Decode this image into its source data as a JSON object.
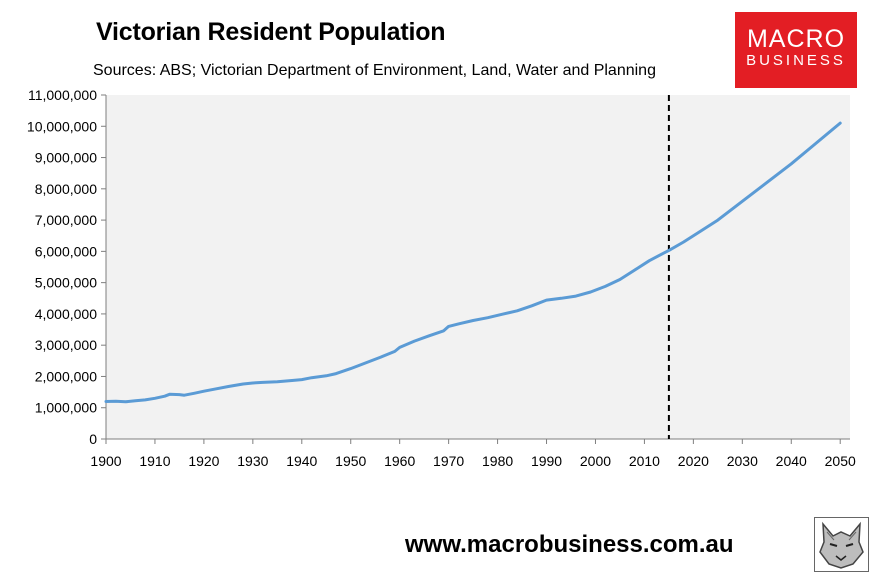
{
  "chart_data": {
    "type": "line",
    "title": "Victorian Resident Population",
    "subtitle": "Sources: ABS; Victorian Department of Environment, Land, Water and Planning",
    "xlim": [
      1900,
      2052
    ],
    "ylim": [
      0,
      11000000
    ],
    "x_ticks": [
      1900,
      1910,
      1920,
      1930,
      1940,
      1950,
      1960,
      1970,
      1980,
      1990,
      2000,
      2010,
      2020,
      2030,
      2040,
      2050
    ],
    "y_ticks": [
      0,
      1000000,
      2000000,
      3000000,
      4000000,
      5000000,
      6000000,
      7000000,
      8000000,
      9000000,
      10000000,
      11000000
    ],
    "y_tick_labels": [
      "0",
      "1,000,000",
      "2,000,000",
      "3,000,000",
      "4,000,000",
      "5,000,000",
      "6,000,000",
      "7,000,000",
      "8,000,000",
      "9,000,000",
      "10,000,000",
      "11,000,000"
    ],
    "grid": false,
    "marker_year": 2015,
    "series": [
      {
        "color": "#5b9bd5",
        "x": [
          1900,
          1902,
          1904,
          1906,
          1908,
          1910,
          1912,
          1913,
          1915,
          1916,
          1918,
          1920,
          1922,
          1925,
          1928,
          1930,
          1932,
          1935,
          1938,
          1940,
          1942,
          1945,
          1947,
          1950,
          1953,
          1956,
          1959,
          1960,
          1963,
          1966,
          1969,
          1970,
          1972,
          1975,
          1978,
          1981,
          1984,
          1987,
          1990,
          1993,
          1996,
          1999,
          2002,
          2005,
          2008,
          2011,
          2014,
          2015,
          2018,
          2021,
          2025,
          2030,
          2035,
          2040,
          2045,
          2050
        ],
        "y": [
          1200000,
          1210000,
          1190000,
          1220000,
          1250000,
          1300000,
          1370000,
          1430000,
          1420000,
          1400000,
          1460000,
          1530000,
          1590000,
          1680000,
          1760000,
          1790000,
          1810000,
          1830000,
          1870000,
          1900000,
          1960000,
          2020000,
          2090000,
          2250000,
          2430000,
          2610000,
          2800000,
          2930000,
          3130000,
          3300000,
          3460000,
          3600000,
          3680000,
          3790000,
          3880000,
          3990000,
          4100000,
          4260000,
          4440000,
          4500000,
          4570000,
          4700000,
          4880000,
          5100000,
          5400000,
          5700000,
          5950000,
          6030000,
          6300000,
          6600000,
          7000000,
          7600000,
          8200000,
          8800000,
          9450000,
          10100000
        ]
      }
    ]
  },
  "footer": {
    "url": "www.macrobusiness.com.au"
  },
  "logo": {
    "line1": "MACRO",
    "line2": "BUSINESS"
  },
  "colors": {
    "plot_background": "#f2f2f2",
    "line": "#5b9bd5",
    "logo_background": "#e31e24"
  }
}
